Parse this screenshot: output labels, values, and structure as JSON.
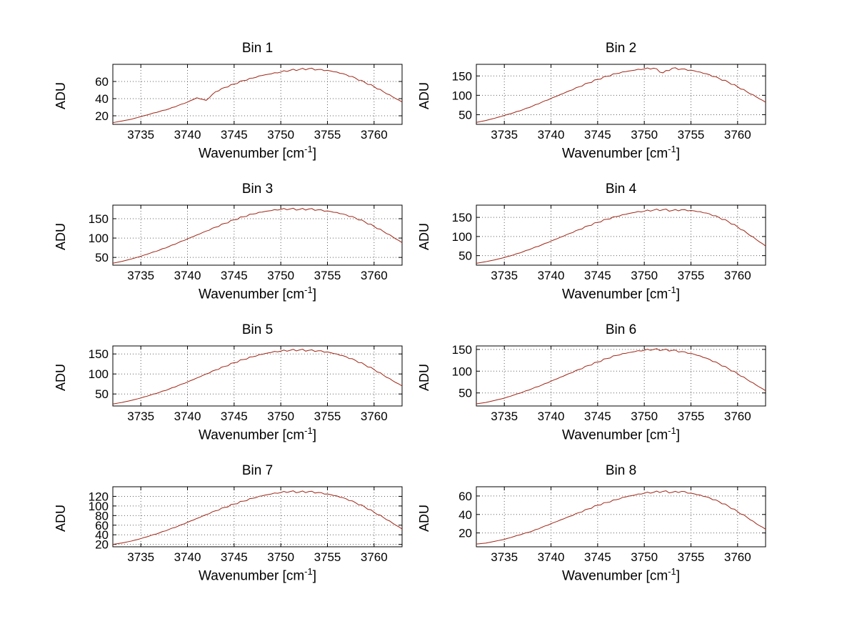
{
  "figure": {
    "background": "#ffffff",
    "line_color": "#a02515",
    "grid_color": "#606060",
    "axis_color": "#000000"
  },
  "labels": {
    "xlabel_prefix": "Wavenumber [cm",
    "xlabel_sup": "-1",
    "xlabel_suffix": "]",
    "ylabel": "ADU"
  },
  "chart_data": [
    {
      "type": "line",
      "title": "Bin 1",
      "xlabel": "Wavenumber [cm⁻¹]",
      "ylabel": "ADU",
      "grid": true,
      "xlim": [
        3732,
        3763
      ],
      "ylim": [
        10,
        80
      ],
      "xticks": [
        3735,
        3740,
        3745,
        3750,
        3755,
        3760
      ],
      "yticks": [
        20,
        40,
        60
      ],
      "x": [
        3732,
        3733,
        3734,
        3735,
        3736,
        3737,
        3738,
        3739,
        3740,
        3741,
        3742,
        3743,
        3744,
        3745,
        3746,
        3747,
        3748,
        3749,
        3750,
        3751,
        3752,
        3753,
        3754,
        3755,
        3756,
        3757,
        3758,
        3759,
        3760,
        3761,
        3762,
        3763
      ],
      "y": [
        12,
        14,
        16,
        19,
        22,
        25,
        28,
        32,
        36,
        41,
        38,
        48,
        53,
        57,
        61,
        64,
        67,
        69,
        71,
        73,
        74,
        75,
        74,
        73,
        71,
        68,
        64,
        59,
        54,
        48,
        42,
        36
      ]
    },
    {
      "type": "line",
      "title": "Bin 2",
      "xlabel": "Wavenumber [cm⁻¹]",
      "ylabel": "ADU",
      "grid": true,
      "xlim": [
        3732,
        3763
      ],
      "ylim": [
        25,
        180
      ],
      "xticks": [
        3735,
        3740,
        3745,
        3750,
        3755,
        3760
      ],
      "yticks": [
        50,
        100,
        150
      ],
      "x": [
        3732,
        3733,
        3734,
        3735,
        3736,
        3737,
        3738,
        3739,
        3740,
        3741,
        3742,
        3743,
        3744,
        3745,
        3746,
        3747,
        3748,
        3749,
        3750,
        3751,
        3752,
        3753,
        3754,
        3755,
        3756,
        3757,
        3758,
        3759,
        3760,
        3761,
        3762,
        3763
      ],
      "y": [
        30,
        35,
        41,
        48,
        55,
        63,
        72,
        82,
        92,
        102,
        112,
        122,
        132,
        141,
        149,
        156,
        161,
        165,
        168,
        170,
        158,
        170,
        168,
        165,
        160,
        153,
        144,
        134,
        122,
        109,
        96,
        82
      ]
    },
    {
      "type": "line",
      "title": "Bin 3",
      "xlabel": "Wavenumber [cm⁻¹]",
      "ylabel": "ADU",
      "grid": true,
      "xlim": [
        3732,
        3763
      ],
      "ylim": [
        30,
        185
      ],
      "xticks": [
        3735,
        3740,
        3745,
        3750,
        3755,
        3760
      ],
      "yticks": [
        50,
        100,
        150
      ],
      "x": [
        3732,
        3733,
        3734,
        3735,
        3736,
        3737,
        3738,
        3739,
        3740,
        3741,
        3742,
        3743,
        3744,
        3745,
        3746,
        3747,
        3748,
        3749,
        3750,
        3751,
        3752,
        3753,
        3754,
        3755,
        3756,
        3757,
        3758,
        3759,
        3760,
        3761,
        3762,
        3763
      ],
      "y": [
        35,
        40,
        46,
        53,
        61,
        69,
        78,
        88,
        98,
        108,
        118,
        128,
        138,
        147,
        155,
        162,
        167,
        171,
        174,
        175,
        174,
        175,
        173,
        170,
        166,
        160,
        152,
        142,
        130,
        117,
        103,
        88
      ]
    },
    {
      "type": "line",
      "title": "Bin 4",
      "xlabel": "Wavenumber [cm⁻¹]",
      "ylabel": "ADU",
      "grid": true,
      "xlim": [
        3732,
        3763
      ],
      "ylim": [
        25,
        182
      ],
      "xticks": [
        3735,
        3740,
        3745,
        3750,
        3755,
        3760
      ],
      "yticks": [
        50,
        100,
        150
      ],
      "x": [
        3732,
        3733,
        3734,
        3735,
        3736,
        3737,
        3738,
        3739,
        3740,
        3741,
        3742,
        3743,
        3744,
        3745,
        3746,
        3747,
        3748,
        3749,
        3750,
        3751,
        3752,
        3753,
        3754,
        3755,
        3756,
        3757,
        3758,
        3759,
        3760,
        3761,
        3762,
        3763
      ],
      "y": [
        30,
        34,
        39,
        45,
        52,
        60,
        69,
        78,
        88,
        98,
        108,
        118,
        128,
        137,
        145,
        152,
        158,
        163,
        166,
        169,
        170,
        168,
        170,
        168,
        165,
        159,
        150,
        139,
        125,
        109,
        92,
        75
      ]
    },
    {
      "type": "line",
      "title": "Bin 5",
      "xlabel": "Wavenumber [cm⁻¹]",
      "ylabel": "ADU",
      "grid": true,
      "xlim": [
        3732,
        3763
      ],
      "ylim": [
        20,
        170
      ],
      "xticks": [
        3735,
        3740,
        3745,
        3750,
        3755,
        3760
      ],
      "yticks": [
        50,
        100,
        150
      ],
      "x": [
        3732,
        3733,
        3734,
        3735,
        3736,
        3737,
        3738,
        3739,
        3740,
        3741,
        3742,
        3743,
        3744,
        3745,
        3746,
        3747,
        3748,
        3749,
        3750,
        3751,
        3752,
        3753,
        3754,
        3755,
        3756,
        3757,
        3758,
        3759,
        3760,
        3761,
        3762,
        3763
      ],
      "y": [
        25,
        29,
        34,
        40,
        47,
        54,
        62,
        71,
        80,
        90,
        100,
        110,
        119,
        128,
        136,
        143,
        149,
        154,
        157,
        159,
        160,
        159,
        158,
        155,
        150,
        143,
        134,
        123,
        111,
        97,
        83,
        70
      ]
    },
    {
      "type": "line",
      "title": "Bin 6",
      "xlabel": "Wavenumber [cm⁻¹]",
      "ylabel": "ADU",
      "grid": true,
      "xlim": [
        3732,
        3763
      ],
      "ylim": [
        20,
        158
      ],
      "xticks": [
        3735,
        3740,
        3745,
        3750,
        3755,
        3760
      ],
      "yticks": [
        50,
        100,
        150
      ],
      "x": [
        3732,
        3733,
        3734,
        3735,
        3736,
        3737,
        3738,
        3739,
        3740,
        3741,
        3742,
        3743,
        3744,
        3745,
        3746,
        3747,
        3748,
        3749,
        3750,
        3751,
        3752,
        3753,
        3754,
        3755,
        3756,
        3757,
        3758,
        3759,
        3760,
        3761,
        3762,
        3763
      ],
      "y": [
        25,
        28,
        33,
        38,
        45,
        52,
        60,
        68,
        77,
        86,
        95,
        104,
        113,
        121,
        129,
        136,
        141,
        145,
        148,
        150,
        149,
        148,
        145,
        141,
        135,
        127,
        117,
        106,
        94,
        81,
        68,
        55
      ]
    },
    {
      "type": "line",
      "title": "Bin 7",
      "xlabel": "Wavenumber [cm⁻¹]",
      "ylabel": "ADU",
      "grid": true,
      "xlim": [
        3732,
        3763
      ],
      "ylim": [
        15,
        140
      ],
      "xticks": [
        3735,
        3740,
        3745,
        3750,
        3755,
        3760
      ],
      "yticks": [
        20,
        40,
        60,
        80,
        100,
        120
      ],
      "x": [
        3732,
        3733,
        3734,
        3735,
        3736,
        3737,
        3738,
        3739,
        3740,
        3741,
        3742,
        3743,
        3744,
        3745,
        3746,
        3747,
        3748,
        3749,
        3750,
        3751,
        3752,
        3753,
        3754,
        3755,
        3756,
        3757,
        3758,
        3759,
        3760,
        3761,
        3762,
        3763
      ],
      "y": [
        20,
        23,
        27,
        32,
        38,
        44,
        51,
        58,
        66,
        74,
        82,
        90,
        97,
        104,
        110,
        116,
        121,
        125,
        128,
        130,
        129,
        130,
        128,
        125,
        121,
        115,
        107,
        98,
        87,
        76,
        64,
        52
      ]
    },
    {
      "type": "line",
      "title": "Bin 8",
      "xlabel": "Wavenumber [cm⁻¹]",
      "ylabel": "ADU",
      "grid": true,
      "xlim": [
        3732,
        3763
      ],
      "ylim": [
        5,
        70
      ],
      "xticks": [
        3735,
        3740,
        3745,
        3750,
        3755,
        3760
      ],
      "yticks": [
        20,
        40,
        60
      ],
      "x": [
        3732,
        3733,
        3734,
        3735,
        3736,
        3737,
        3738,
        3739,
        3740,
        3741,
        3742,
        3743,
        3744,
        3745,
        3746,
        3747,
        3748,
        3749,
        3750,
        3751,
        3752,
        3753,
        3754,
        3755,
        3756,
        3757,
        3758,
        3759,
        3760,
        3761,
        3762,
        3763
      ],
      "y": [
        8,
        9,
        11,
        13,
        16,
        19,
        22,
        26,
        30,
        34,
        38,
        42,
        46,
        50,
        53,
        56,
        59,
        61,
        63,
        64,
        65,
        64,
        65,
        63,
        61,
        58,
        54,
        49,
        43,
        37,
        30,
        24
      ]
    }
  ]
}
